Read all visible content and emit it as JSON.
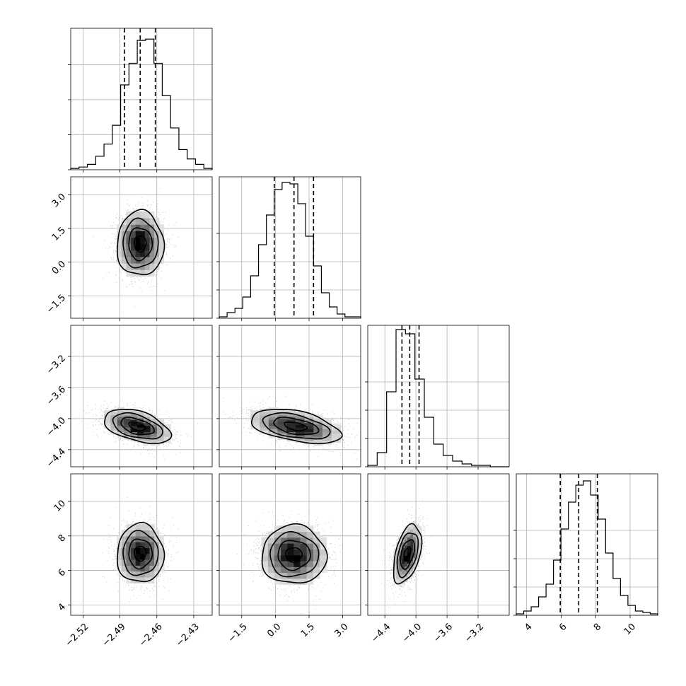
{
  "chart_data": {
    "type": "corner",
    "title": "",
    "grid": true,
    "parameters": [
      {
        "name": "",
        "range": [
          -2.53,
          -2.415
        ],
        "ticks": [
          -2.52,
          -2.49,
          -2.46,
          -2.43
        ],
        "tick_labels": [
          "−2.52",
          "−2.49",
          "−2.46",
          "−2.43"
        ],
        "quantiles": [
          -2.4863,
          -2.4735,
          -2.4612
        ],
        "hist_counts": [
          1,
          2,
          4,
          10,
          19,
          33,
          63,
          79,
          96,
          97,
          79,
          55,
          31,
          15,
          8,
          4,
          1
        ],
        "hist_ylim": [
          0,
          105
        ],
        "hist_ticks": [
          0,
          26,
          52,
          78
        ]
      },
      {
        "name": "",
        "range": [
          -2.5,
          3.8
        ],
        "ticks": [
          -1.5,
          0.0,
          1.5,
          3.0
        ],
        "tick_labels": [
          "−1.5",
          "0.0",
          "1.5",
          "3.0"
        ],
        "quantiles": [
          -0.05,
          0.83,
          1.7
        ],
        "hist_counts": [
          1,
          4,
          7,
          15,
          30,
          52,
          73,
          91,
          96,
          95,
          81,
          58,
          37,
          18,
          8,
          3,
          1,
          1
        ],
        "hist_ylim": [
          0,
          100
        ],
        "hist_ticks": [
          0,
          20,
          40,
          60
        ]
      },
      {
        "name": "",
        "range": [
          -4.62,
          -2.8
        ],
        "ticks": [
          -4.4,
          -4.0,
          -3.6,
          -3.2
        ],
        "tick_labels": [
          "−4.4",
          "−4.0",
          "−3.6",
          "−3.2"
        ],
        "quantiles": [
          -4.18,
          -4.08,
          -3.96
        ],
        "hist_counts": [
          1,
          10,
          53,
          97,
          94,
          62,
          35,
          16,
          8,
          4,
          2,
          1,
          1,
          0,
          0
        ],
        "hist_ylim": [
          0,
          100
        ],
        "hist_ticks": [
          0,
          20,
          40,
          60
        ]
      },
      {
        "name": "",
        "range": [
          3.4,
          11.6
        ],
        "ticks": [
          4,
          6,
          8,
          10
        ],
        "tick_labels": [
          "4",
          "6",
          "8",
          "10"
        ],
        "quantiles": [
          5.95,
          7.02,
          8.1
        ],
        "hist_counts": [
          1,
          3,
          6,
          13,
          22,
          39,
          61,
          80,
          92,
          95,
          85,
          68,
          44,
          26,
          14,
          7,
          3,
          2,
          1
        ],
        "hist_ylim": [
          0,
          100
        ],
        "hist_ticks": [
          0,
          20,
          40,
          60
        ]
      }
    ],
    "pairs": [
      {
        "x": 0,
        "y": 1,
        "center": [
          -2.4735,
          0.82
        ],
        "sigma": [
          0.0095,
          0.72
        ],
        "rho": 0.0
      },
      {
        "x": 0,
        "y": 2,
        "center": [
          -2.476,
          -4.1
        ],
        "sigma": [
          0.0135,
          0.11
        ],
        "rho": -0.45
      },
      {
        "x": 1,
        "y": 2,
        "center": [
          0.9,
          -4.1
        ],
        "sigma": [
          1.0,
          0.11
        ],
        "rho": -0.45
      },
      {
        "x": 0,
        "y": 3,
        "center": [
          -2.4735,
          6.98
        ],
        "sigma": [
          0.0095,
          0.85
        ],
        "rho": 0.0
      },
      {
        "x": 1,
        "y": 3,
        "center": [
          0.82,
          6.9
        ],
        "sigma": [
          0.72,
          0.85
        ],
        "rho": 0.0
      },
      {
        "x": 2,
        "y": 3,
        "center": [
          -4.11,
          6.95
        ],
        "sigma": [
          0.09,
          0.85
        ],
        "rho": 0.45
      }
    ],
    "contour_levels_sigma": [
      0.5,
      1.0,
      1.5,
      2.0
    ]
  }
}
